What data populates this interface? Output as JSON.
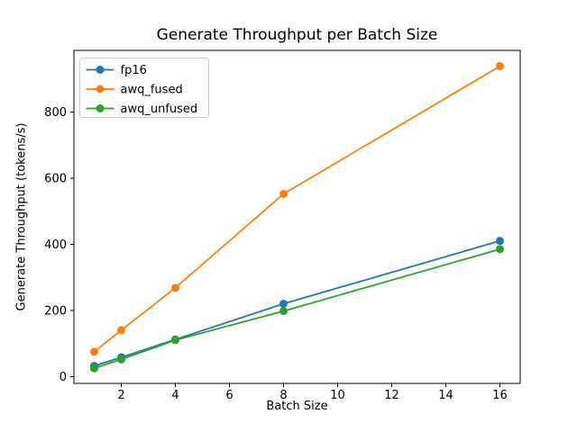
{
  "chart_data": {
    "type": "line",
    "title": "Generate Throughput per Batch Size",
    "xlabel": "Batch Size",
    "ylabel": "Generate Throughput (tokens/s)",
    "x": [
      1,
      2,
      4,
      8,
      16
    ],
    "series": [
      {
        "name": "fp16",
        "color": "#1f77b4",
        "values": [
          32,
          58,
          112,
          220,
          410
        ]
      },
      {
        "name": "awq_fused",
        "color": "#ff7f0e",
        "values": [
          75,
          140,
          268,
          552,
          938
        ]
      },
      {
        "name": "awq_unfused",
        "color": "#2ca02c",
        "values": [
          25,
          52,
          110,
          198,
          385
        ]
      }
    ],
    "xlim": [
      0.25,
      16.75
    ],
    "ylim": [
      -20.75,
      985.75
    ],
    "xticks": [
      2,
      4,
      6,
      8,
      10,
      12,
      14,
      16
    ],
    "yticks": [
      0,
      200,
      400,
      600,
      800
    ],
    "grid": false,
    "legend_position": "upper left",
    "legend_edge_color": "#cccccc",
    "marker": "o"
  }
}
